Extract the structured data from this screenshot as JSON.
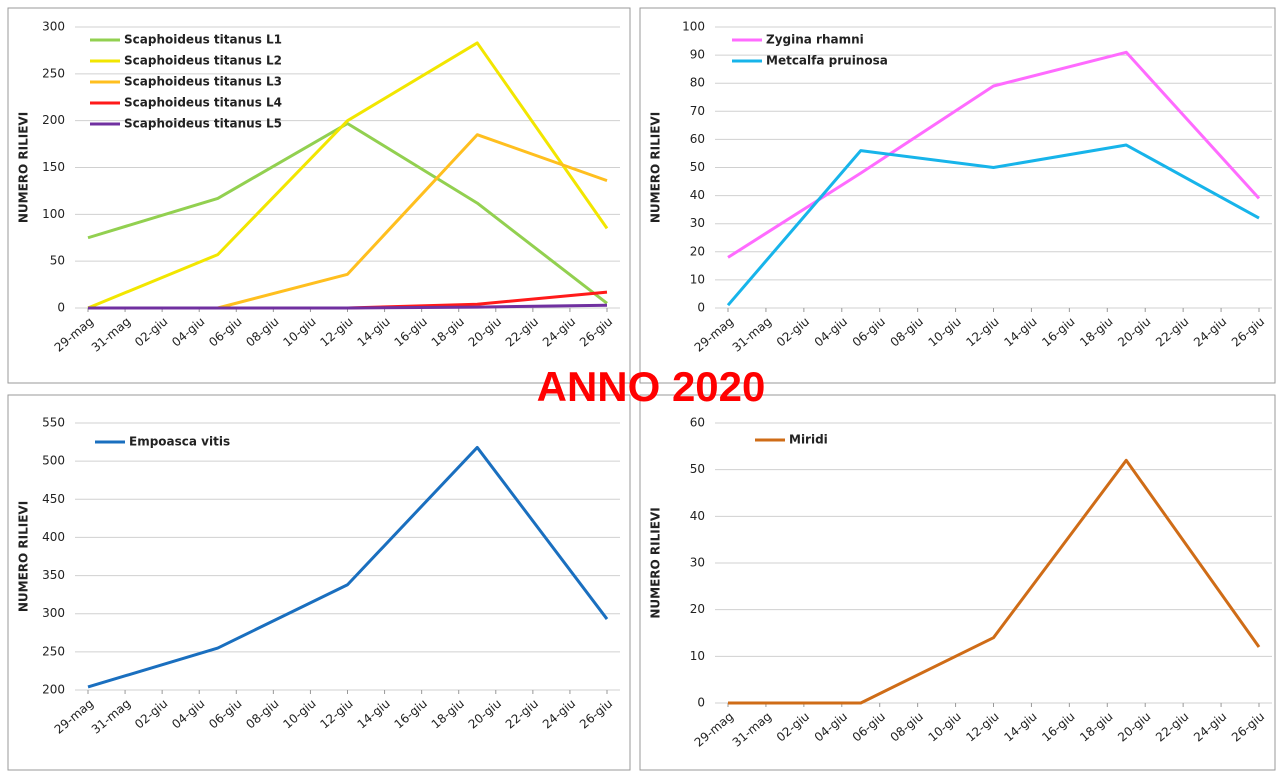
{
  "title": "ANNO 2020",
  "chart_data": [
    {
      "type": "line",
      "ylabel": "NUMERO RILIEVI",
      "x": [
        "05-29",
        "06-05",
        "06-12",
        "06-19",
        "06-26"
      ],
      "xlim": [
        "05-29",
        "06-26"
      ],
      "xticks": [
        {
          "value": "05-29",
          "label": "29-mag"
        },
        {
          "value": "05-31",
          "label": "31-mag"
        },
        {
          "value": "06-02",
          "label": "02-giu"
        },
        {
          "value": "06-04",
          "label": "04-giu"
        },
        {
          "value": "06-06",
          "label": "06-giu"
        },
        {
          "value": "06-08",
          "label": "08-giu"
        },
        {
          "value": "06-10",
          "label": "10-giu"
        },
        {
          "value": "06-12",
          "label": "12-giu"
        },
        {
          "value": "06-14",
          "label": "14-giu"
        },
        {
          "value": "06-16",
          "label": "16-giu"
        },
        {
          "value": "06-18",
          "label": "18-giu"
        },
        {
          "value": "06-20",
          "label": "20-giu"
        },
        {
          "value": "06-22",
          "label": "22-giu"
        },
        {
          "value": "06-24",
          "label": "24-giu"
        },
        {
          "value": "06-26",
          "label": "26-giu"
        }
      ],
      "ylim": [
        0,
        300
      ],
      "yticks": [
        0,
        50,
        100,
        150,
        200,
        250,
        300
      ],
      "grid": true,
      "series": [
        {
          "name": "Scaphoideus titanus L1",
          "color": "#92d050",
          "values": [
            75,
            117,
            197,
            112,
            5
          ]
        },
        {
          "name": "Scaphoideus titanus L2",
          "color": "#f2e600",
          "values": [
            0,
            57,
            200,
            283,
            85
          ]
        },
        {
          "name": "Scaphoideus titanus L3",
          "color": "#ffbf1f",
          "values": [
            0,
            0,
            36,
            185,
            136
          ]
        },
        {
          "name": "Scaphoideus titanus L4",
          "color": "#ff1a1a",
          "values": [
            0,
            0,
            0,
            4,
            17
          ]
        },
        {
          "name": "Scaphoideus titanus L5",
          "color": "#7030a0",
          "values": [
            0,
            0,
            0,
            1,
            3
          ]
        }
      ]
    },
    {
      "type": "line",
      "ylabel": "NUMERO RILIEVI",
      "x": [
        "05-29",
        "06-05",
        "06-12",
        "06-19",
        "06-26"
      ],
      "xlim": [
        "05-29",
        "06-26"
      ],
      "xticks": [
        {
          "value": "05-29",
          "label": "29-mag"
        },
        {
          "value": "05-31",
          "label": "31-mag"
        },
        {
          "value": "06-02",
          "label": "02-giu"
        },
        {
          "value": "06-04",
          "label": "04-giu"
        },
        {
          "value": "06-06",
          "label": "06-giu"
        },
        {
          "value": "06-08",
          "label": "08-giu"
        },
        {
          "value": "06-10",
          "label": "10-giu"
        },
        {
          "value": "06-12",
          "label": "12-giu"
        },
        {
          "value": "06-14",
          "label": "14-giu"
        },
        {
          "value": "06-16",
          "label": "16-giu"
        },
        {
          "value": "06-18",
          "label": "18-giu"
        },
        {
          "value": "06-20",
          "label": "20-giu"
        },
        {
          "value": "06-22",
          "label": "22-giu"
        },
        {
          "value": "06-24",
          "label": "24-giu"
        },
        {
          "value": "06-26",
          "label": "26-giu"
        }
      ],
      "ylim": [
        0,
        100
      ],
      "yticks": [
        0,
        10,
        20,
        30,
        40,
        50,
        60,
        70,
        80,
        90,
        100
      ],
      "grid": true,
      "series": [
        {
          "name": "Zygina rhamni",
          "color": "#ff6bff",
          "values": [
            18,
            48,
            79,
            91,
            39
          ]
        },
        {
          "name": "Metcalfa pruinosa",
          "color": "#17b4ea",
          "values": [
            1,
            56,
            50,
            58,
            32
          ]
        }
      ]
    },
    {
      "type": "line",
      "ylabel": "NUMERO RILIEVI",
      "x": [
        "05-29",
        "06-05",
        "06-12",
        "06-19",
        "06-26"
      ],
      "xlim": [
        "05-29",
        "06-26"
      ],
      "xticks": [
        {
          "value": "05-29",
          "label": "29-mag"
        },
        {
          "value": "05-31",
          "label": "31-mag"
        },
        {
          "value": "06-02",
          "label": "02-giu"
        },
        {
          "value": "06-04",
          "label": "04-giu"
        },
        {
          "value": "06-06",
          "label": "06-giu"
        },
        {
          "value": "06-08",
          "label": "08-giu"
        },
        {
          "value": "06-10",
          "label": "10-giu"
        },
        {
          "value": "06-12",
          "label": "12-giu"
        },
        {
          "value": "06-14",
          "label": "14-giu"
        },
        {
          "value": "06-16",
          "label": "16-giu"
        },
        {
          "value": "06-18",
          "label": "18-giu"
        },
        {
          "value": "06-20",
          "label": "20-giu"
        },
        {
          "value": "06-22",
          "label": "22-giu"
        },
        {
          "value": "06-24",
          "label": "24-giu"
        },
        {
          "value": "06-26",
          "label": "26-giu"
        }
      ],
      "ylim": [
        200,
        550
      ],
      "yticks": [
        200,
        250,
        300,
        350,
        400,
        450,
        500,
        550
      ],
      "grid": true,
      "series": [
        {
          "name": "Empoasca vitis",
          "color": "#1a6fbf",
          "values": [
            204,
            255,
            338,
            518,
            293
          ]
        }
      ]
    },
    {
      "type": "line",
      "ylabel": "NUMERO RILIEVI",
      "x": [
        "05-29",
        "06-05",
        "06-12",
        "06-19",
        "06-26"
      ],
      "xlim": [
        "05-29",
        "06-26"
      ],
      "xticks": [
        {
          "value": "05-29",
          "label": "29-mag"
        },
        {
          "value": "05-31",
          "label": "31-mag"
        },
        {
          "value": "06-02",
          "label": "02-giu"
        },
        {
          "value": "06-04",
          "label": "04-giu"
        },
        {
          "value": "06-06",
          "label": "06-giu"
        },
        {
          "value": "06-08",
          "label": "08-giu"
        },
        {
          "value": "06-10",
          "label": "10-giu"
        },
        {
          "value": "06-12",
          "label": "12-giu"
        },
        {
          "value": "06-14",
          "label": "14-giu"
        },
        {
          "value": "06-16",
          "label": "16-giu"
        },
        {
          "value": "06-18",
          "label": "18-giu"
        },
        {
          "value": "06-20",
          "label": "20-giu"
        },
        {
          "value": "06-22",
          "label": "22-giu"
        },
        {
          "value": "06-24",
          "label": "24-giu"
        },
        {
          "value": "06-26",
          "label": "26-giu"
        }
      ],
      "ylim": [
        0,
        60
      ],
      "yticks": [
        0,
        10,
        20,
        30,
        40,
        50,
        60
      ],
      "grid": true,
      "series": [
        {
          "name": "Miridi",
          "color": "#cf6c17",
          "values": [
            0,
            0,
            14,
            52,
            12
          ]
        }
      ]
    }
  ]
}
